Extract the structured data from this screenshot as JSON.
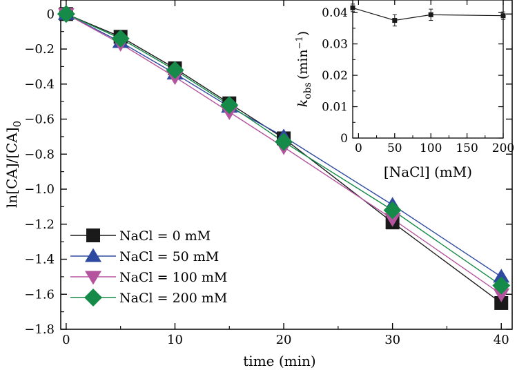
{
  "chart_data": {
    "type": "line",
    "main": {
      "xlabel": "time (min)",
      "ylabel": "ln[CA]/[CA]",
      "ylabel_subscript": "0",
      "xlim": [
        -0.5,
        41
      ],
      "ylim": [
        -1.8,
        0.08
      ],
      "x_ticks": [
        0,
        10,
        20,
        30,
        40
      ],
      "x_tick_labels": [
        "0",
        "10",
        "20",
        "30",
        "40"
      ],
      "y_ticks": [
        0,
        -0.2,
        -0.4,
        -0.6,
        -0.8,
        -1.0,
        -1.2,
        -1.4,
        -1.6,
        -1.8
      ],
      "y_tick_labels": [
        "0",
        "-0.2",
        "-0.4",
        "-0.6",
        "-0.8",
        "-1.0",
        "-1.2",
        "-1.4",
        "-1.6",
        "-1.8"
      ],
      "x": [
        0,
        5,
        10,
        15,
        20,
        30,
        40
      ],
      "legend_position": "bottom-left",
      "series": [
        {
          "name": "NaCl = 0 mM",
          "marker": "square",
          "color": "#1a1a1a",
          "values": [
            0,
            -0.13,
            -0.31,
            -0.51,
            -0.71,
            -1.19,
            -1.65
          ],
          "errors": [
            0.01,
            0.01,
            0.02,
            0.02,
            0.02,
            0.03,
            0.03
          ]
        },
        {
          "name": "NaCl = 50 mM",
          "marker": "triangle-up",
          "color": "#2e4aa0",
          "values": [
            0,
            -0.16,
            -0.34,
            -0.53,
            -0.7,
            -1.09,
            -1.5
          ],
          "errors": [
            0.01,
            0.02,
            0.02,
            0.02,
            0.03,
            0.03,
            0.03
          ]
        },
        {
          "name": "NaCl = 100 mM",
          "marker": "triangle-down",
          "color": "#b5549e",
          "values": [
            0,
            -0.17,
            -0.36,
            -0.56,
            -0.76,
            -1.17,
            -1.6
          ],
          "errors": [
            0.01,
            0.02,
            0.02,
            0.02,
            0.04,
            0.03,
            0.03
          ]
        },
        {
          "name": "NaCl = 200 mM",
          "marker": "diamond",
          "color": "#168a48",
          "values": [
            0,
            -0.14,
            -0.32,
            -0.52,
            -0.73,
            -1.12,
            -1.55
          ],
          "errors": [
            0.01,
            0.01,
            0.02,
            0.02,
            0.02,
            0.03,
            0.03
          ]
        }
      ]
    },
    "inset": {
      "xlabel": "[NaCl] (mM)",
      "ylabel_symbol": "k",
      "ylabel_subscript": "obs",
      "ylabel_unit": "(min",
      "ylabel_superscript": "−1",
      "ylabel_close": ")",
      "xlim": [
        -8,
        200
      ],
      "ylim": [
        0,
        0.044
      ],
      "x_ticks": [
        0,
        50,
        100,
        150,
        200
      ],
      "x_tick_labels": [
        "0",
        "50",
        "100",
        "150",
        "200"
      ],
      "y_ticks": [
        0,
        0.01,
        0.02,
        0.03,
        0.04
      ],
      "y_tick_labels": [
        "0",
        "0.01",
        "0.02",
        "0.03",
        "0.04"
      ],
      "series": [
        {
          "name": "kobs",
          "marker": "square",
          "color": "#1a1a1a",
          "x": [
            -8,
            50,
            100,
            200
          ],
          "values": [
            0.0415,
            0.0375,
            0.0393,
            0.039
          ],
          "errors": [
            0.0012,
            0.0018,
            0.0018,
            0.0012
          ]
        }
      ]
    }
  }
}
